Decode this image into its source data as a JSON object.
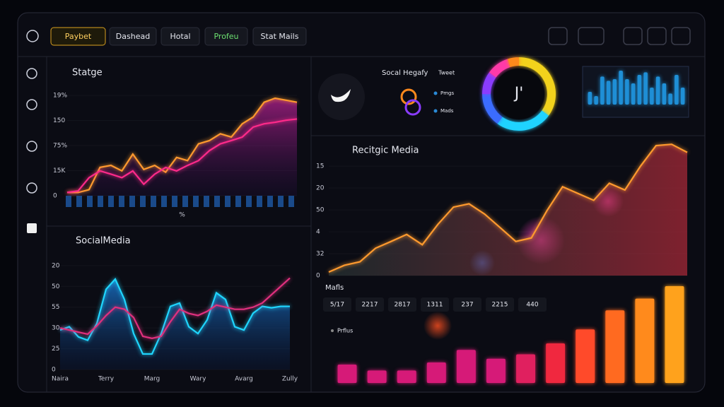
{
  "nav": {
    "tabs": [
      "Paybet",
      "Dashead",
      "Hotal",
      "Profeu",
      "Stat Mails"
    ]
  },
  "social": {
    "title": "Socal Hegafy",
    "tag": "Tweet",
    "legend": [
      "Pmgs",
      "Mads"
    ]
  },
  "metrics": {
    "title": "Mafls",
    "row": [
      "5/17",
      "2217",
      "2817",
      "1311",
      "237",
      "2215",
      "440"
    ],
    "legend": "Prflus"
  },
  "chart_data": [
    {
      "type": "line",
      "title": "Statge",
      "x_label": "%",
      "ylim": [
        0,
        4.2
      ],
      "yticks": [
        0,
        {
          "value": 1,
          "label": "15K"
        },
        {
          "value": 2,
          "label": "75%"
        },
        {
          "value": 3,
          "label": "150"
        },
        {
          "value": 4,
          "label": "19%"
        }
      ],
      "series": [
        {
          "color": "#ff9a2e",
          "values": [
            0.13,
            0.13,
            0.24,
            1.13,
            1.21,
            0.99,
            1.66,
            1.05,
            1.21,
            0.94,
            1.53,
            1.4,
            2.07,
            2.2,
            2.47,
            2.34,
            2.87,
            3.14,
            3.73,
            3.89,
            3.81,
            3.73
          ]
        },
        {
          "color": "#ff2a8a",
          "values": [
            0.13,
            0.19,
            0.72,
            0.99,
            0.86,
            0.72,
            0.99,
            0.46,
            0.86,
            1.13,
            0.99,
            1.21,
            1.4,
            1.8,
            2.07,
            2.2,
            2.34,
            2.74,
            2.87,
            2.93,
            3.01,
            3.06
          ]
        }
      ]
    },
    {
      "type": "line",
      "title": "SocialMedia",
      "ylim": [
        0,
        5.2
      ],
      "yticks": [
        0,
        {
          "value": 1,
          "label": "25"
        },
        {
          "value": 2,
          "label": "30"
        },
        {
          "value": 3,
          "label": "55"
        },
        {
          "value": 4,
          "label": "50"
        },
        {
          "value": 5,
          "label": "20"
        }
      ],
      "categories": [
        "Naira",
        null,
        null,
        null,
        null,
        "Terry",
        null,
        null,
        null,
        null,
        "Marg",
        null,
        null,
        null,
        null,
        "Wary",
        null,
        null,
        null,
        null,
        "Avarg",
        null,
        null,
        null,
        null,
        "Zully"
      ],
      "series": [
        {
          "color": "#1fd6ff",
          "values": [
            1.9,
            2.06,
            1.57,
            1.41,
            2.22,
            3.86,
            4.35,
            3.37,
            1.73,
            0.75,
            0.75,
            1.73,
            3.04,
            3.2,
            2.06,
            1.73,
            2.39,
            3.69,
            3.37,
            2.06,
            1.9,
            2.71,
            3.04,
            2.97,
            3.04,
            3.04
          ]
        },
        {
          "color": "#e0307e",
          "values": [
            2.0,
            1.9,
            1.8,
            1.7,
            2.1,
            2.6,
            3.0,
            2.9,
            2.5,
            1.6,
            1.5,
            1.6,
            2.3,
            2.9,
            2.7,
            2.6,
            2.8,
            3.1,
            3.0,
            2.9,
            2.9,
            3.0,
            3.2,
            3.6,
            4.0,
            4.4
          ]
        }
      ]
    },
    {
      "type": "pie",
      "center_label": "J'",
      "values": [
        35,
        25,
        15,
        10,
        10,
        5
      ],
      "colors": [
        "#f2d21c",
        "#1fd3ff",
        "#3b6cff",
        "#8a3cff",
        "#ff3aa8",
        "#ff8a1c"
      ]
    },
    {
      "type": "bar",
      "color": "#1f8fd6",
      "values": [
        15,
        10,
        33,
        28,
        30,
        40,
        30,
        25,
        35,
        38,
        20,
        33,
        25,
        13,
        35,
        20
      ]
    },
    {
      "type": "line",
      "title": "Recitgic Media",
      "ylim": [
        0,
        6.2
      ],
      "yticks": [
        0,
        {
          "value": 1,
          "label": "32"
        },
        {
          "value": 2,
          "label": "4"
        },
        {
          "value": 3,
          "label": "50"
        },
        {
          "value": 4,
          "label": "20"
        },
        {
          "value": 5,
          "label": "15"
        }
      ],
      "series": [
        {
          "color": "#ff9a2e",
          "values": [
            0.16,
            0.47,
            0.63,
            1.25,
            1.56,
            1.88,
            1.41,
            2.34,
            3.13,
            3.28,
            2.81,
            2.19,
            1.56,
            1.72,
            2.97,
            4.06,
            3.75,
            3.44,
            4.22,
            3.91,
            5.0,
            5.94,
            6.0,
            5.63
          ]
        }
      ]
    },
    {
      "type": "bar",
      "values": [
        25,
        17,
        17,
        28,
        45,
        33,
        39,
        54,
        73,
        99,
        115,
        132
      ],
      "colors": [
        "#d61a78",
        "#d61a78",
        "#d61a78",
        "#d61a78",
        "#d61a78",
        "#d61a78",
        "#e0205f",
        "#f0283f",
        "#ff4a2a",
        "#ff6a20",
        "#ff8a1c",
        "#ffa21c"
      ]
    }
  ]
}
